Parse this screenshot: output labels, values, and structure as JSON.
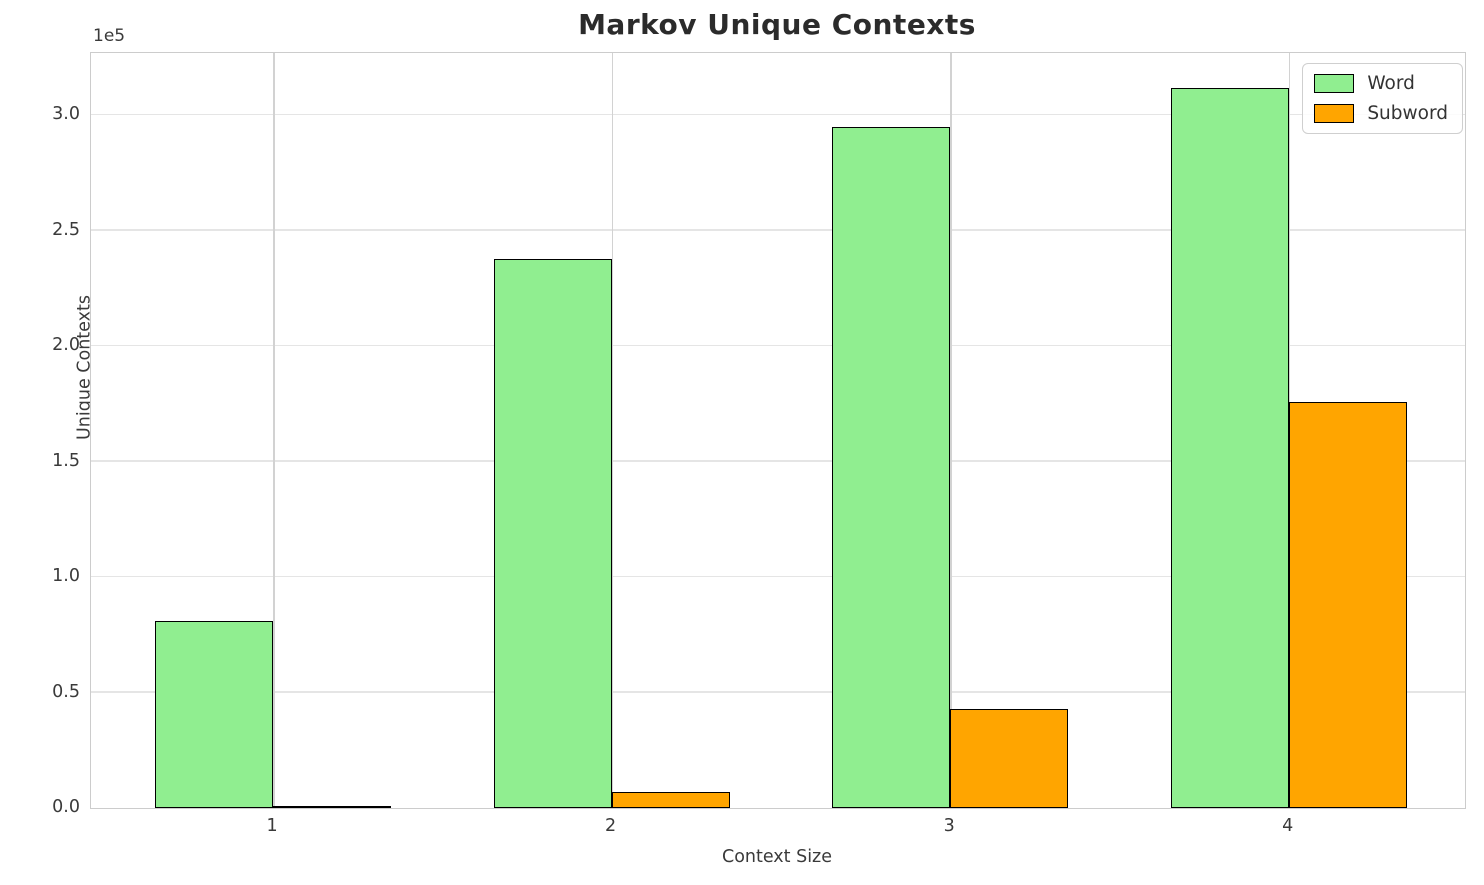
{
  "chart_data": {
    "type": "bar",
    "title": "Markov Unique Contexts",
    "xlabel": "Context Size",
    "ylabel": "Unique Contexts",
    "offset_text": "1e5",
    "categories": [
      "1",
      "2",
      "3",
      "4"
    ],
    "series": [
      {
        "name": "Word",
        "color": "#90EE90",
        "values": [
          81000,
          238000,
          295000,
          312000
        ]
      },
      {
        "name": "Subword",
        "color": "#FFA500",
        "values": [
          1000,
          7000,
          43000,
          176000
        ]
      }
    ],
    "bar_edge_color": "#000000",
    "ylim": [
      0,
      327000
    ],
    "yticks": [
      0,
      50000,
      100000,
      150000,
      200000,
      250000,
      300000
    ],
    "ytick_labels": [
      "0.0",
      "0.5",
      "1.0",
      "1.5",
      "2.0",
      "2.5",
      "3.0"
    ],
    "grid": true,
    "legend_position": "upper right"
  }
}
